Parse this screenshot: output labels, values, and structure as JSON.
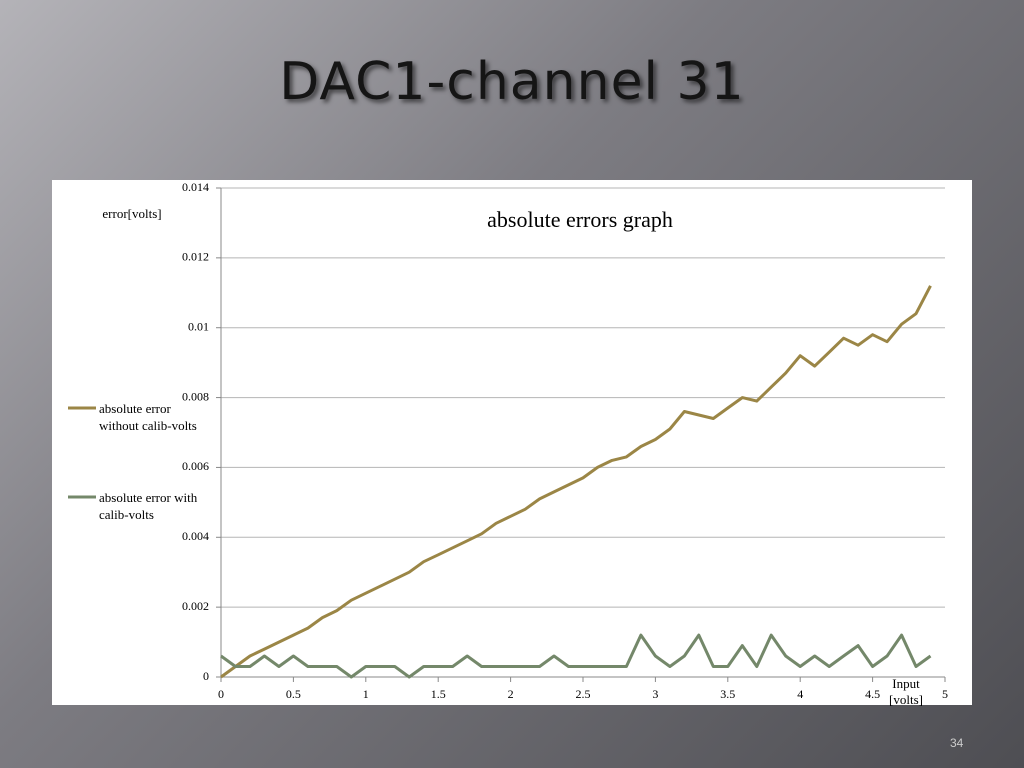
{
  "slide_title": "DAC1-channel 31",
  "page_number": "34",
  "chart_data": {
    "type": "line",
    "title": "absolute errors graph",
    "y_label": "error[volts]",
    "x_label": "Input [volts]",
    "xlim": [
      0,
      5
    ],
    "xticks": [
      0,
      0.5,
      1,
      1.5,
      2,
      2.5,
      3,
      3.5,
      4,
      4.5,
      5
    ],
    "ylim": [
      0,
      0.014
    ],
    "yticks": [
      0,
      0.002,
      0.004,
      0.006,
      0.008,
      0.01,
      0.012,
      0.014
    ],
    "grid": true,
    "legend": "left",
    "x": [
      0,
      0.1,
      0.2,
      0.3,
      0.4,
      0.5,
      0.6,
      0.7,
      0.8,
      0.9,
      1,
      1.1,
      1.2,
      1.3,
      1.4,
      1.5,
      1.6,
      1.7,
      1.8,
      1.9,
      2,
      2.1,
      2.2,
      2.3,
      2.4,
      2.5,
      2.6,
      2.7,
      2.8,
      2.9,
      3,
      3.1,
      3.2,
      3.3,
      3.4,
      3.5,
      3.6,
      3.7,
      3.8,
      3.9,
      4,
      4.1,
      4.2,
      4.3,
      4.4,
      4.5,
      4.6,
      4.7,
      4.8,
      4.9
    ],
    "series": [
      {
        "name": "absolute error without calib-volts",
        "color": "#9b8646",
        "values": [
          0,
          0.0003,
          0.0006,
          0.0008,
          0.001,
          0.0012,
          0.0014,
          0.0017,
          0.0019,
          0.0022,
          0.0024,
          0.0026,
          0.0028,
          0.003,
          0.0033,
          0.0035,
          0.0037,
          0.0039,
          0.0041,
          0.0044,
          0.0046,
          0.0048,
          0.0051,
          0.0053,
          0.0055,
          0.0057,
          0.006,
          0.0062,
          0.0063,
          0.0066,
          0.0068,
          0.0071,
          0.0076,
          0.0075,
          0.0074,
          0.0077,
          0.008,
          0.0079,
          0.0083,
          0.0087,
          0.0092,
          0.0089,
          0.0093,
          0.0097,
          0.0095,
          0.0098,
          0.0096,
          0.0101,
          0.0104,
          0.0112
        ]
      },
      {
        "name": "absolute error with calib-volts",
        "color": "#74886a",
        "values": [
          0.0006,
          0.0003,
          0.0003,
          0.0006,
          0.0003,
          0.0006,
          0.0003,
          0.0003,
          0.0003,
          0,
          0.0003,
          0.0003,
          0.0003,
          0,
          0.0003,
          0.0003,
          0.0003,
          0.0006,
          0.0003,
          0.0003,
          0.0003,
          0.0003,
          0.0003,
          0.0006,
          0.0003,
          0.0003,
          0.0003,
          0.0003,
          0.0003,
          0.0012,
          0.0006,
          0.0003,
          0.0006,
          0.0012,
          0.0003,
          0.0003,
          0.0009,
          0.0003,
          0.0012,
          0.0006,
          0.0003,
          0.0006,
          0.0003,
          0.0006,
          0.0009,
          0.0003,
          0.0006,
          0.0012,
          0.0003,
          0.0006
        ]
      }
    ]
  }
}
